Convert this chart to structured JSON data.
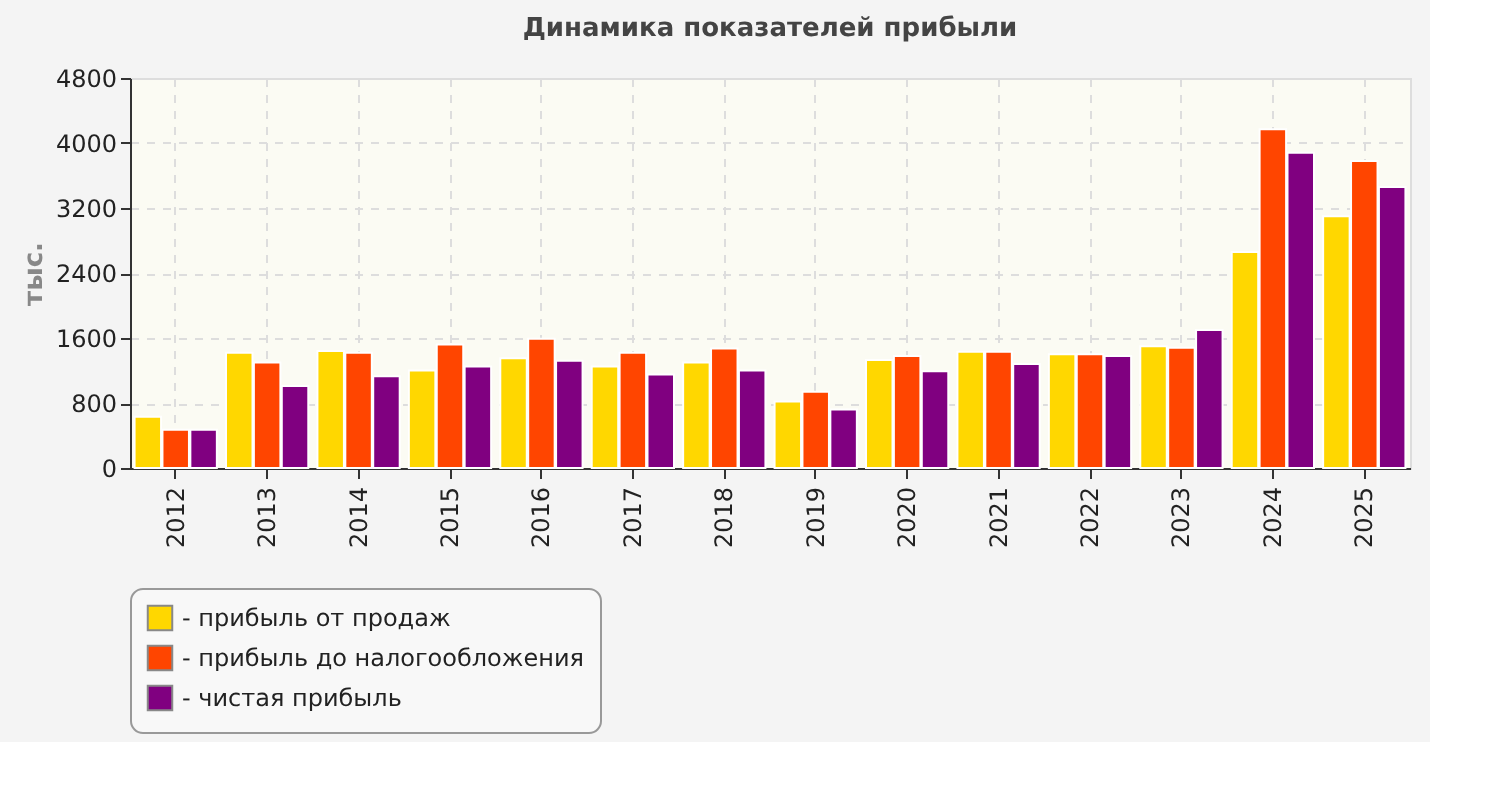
{
  "chart_data": {
    "type": "bar",
    "title": "Динамика показателей прибыли",
    "ylabel": "тыс.",
    "categories": [
      "2012",
      "2013",
      "2014",
      "2015",
      "2016",
      "2017",
      "2018",
      "2019",
      "2020",
      "2021",
      "2022",
      "2023",
      "2024",
      "2025"
    ],
    "series": [
      {
        "name": "- прибыль от продаж",
        "color": "#ffd700",
        "values": [
          630,
          1420,
          1440,
          1200,
          1350,
          1250,
          1300,
          820,
          1330,
          1430,
          1400,
          1500,
          2660,
          3100
        ]
      },
      {
        "name": "- прибыль до налогообложения",
        "color": "#ff4500",
        "values": [
          470,
          1300,
          1420,
          1520,
          1590,
          1420,
          1470,
          940,
          1380,
          1430,
          1400,
          1480,
          4170,
          3780
        ]
      },
      {
        "name": "- чистая прибыль",
        "color": "#800080",
        "values": [
          470,
          1010,
          1130,
          1250,
          1320,
          1150,
          1200,
          720,
          1190,
          1280,
          1380,
          1700,
          3880,
          3460
        ]
      }
    ],
    "ylim": [
      0,
      4800
    ],
    "yticks": [
      0,
      800,
      1600,
      2400,
      3200,
      4000,
      4800
    ],
    "grid": true,
    "legend": "bottom"
  }
}
